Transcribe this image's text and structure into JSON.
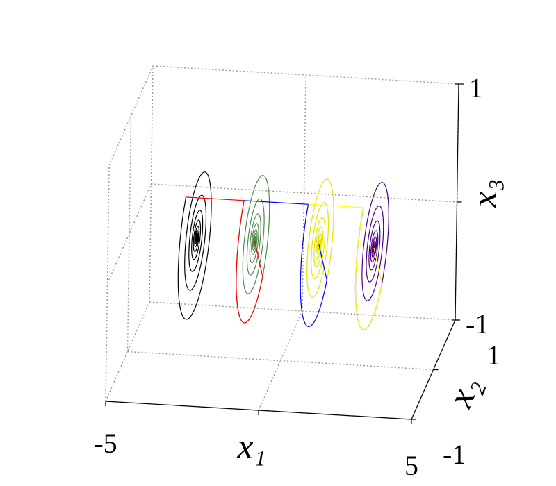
{
  "chart_data": {
    "type": "spiral3d",
    "x_label": "x₁",
    "y_label": "x₂",
    "z_label": "x₃",
    "xlim": [
      -5,
      5
    ],
    "xticks": [
      -5,
      5
    ],
    "ylim": [
      -1,
      1
    ],
    "yticks": [
      -1,
      1
    ],
    "zlim": [
      -1,
      1
    ],
    "zticks": [
      -1,
      1
    ],
    "grid": true,
    "series": [
      {
        "color": "#000000",
        "connector": "#3cb371",
        "x1": -2.8
      },
      {
        "color": "#4e8a4e",
        "connector": "#ff0000",
        "x1": -0.9
      },
      {
        "color": "#e6e600",
        "connector": "#0000ff",
        "x1": 1.2
      },
      {
        "color": "#4b0082",
        "connector": "#ffff00",
        "x1": 3.0
      }
    ]
  }
}
